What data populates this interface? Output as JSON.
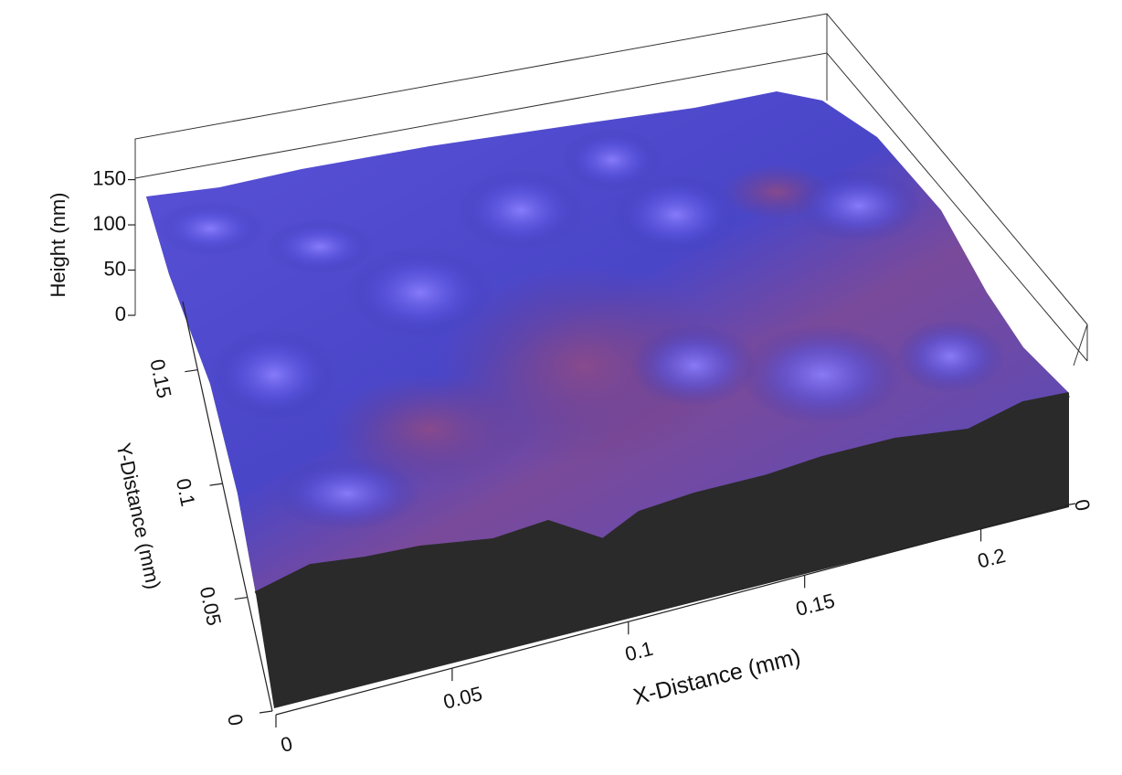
{
  "chart_data": {
    "type": "surface3d",
    "xlabel": "X-Distance (mm)",
    "ylabel": "Y-Distance (mm)",
    "zlabel": "Height (nm)",
    "xlim": [
      0,
      0.225
    ],
    "xticks": [
      0,
      0.05,
      0.1,
      0.15,
      0.2
    ],
    "ylim": [
      0,
      0.18
    ],
    "yticks": [
      0,
      0.05,
      0.1,
      0.15
    ],
    "y2ticks": [
      0
    ],
    "zlim": [
      0,
      190
    ],
    "zticks": [
      0,
      50,
      100,
      150
    ]
  }
}
